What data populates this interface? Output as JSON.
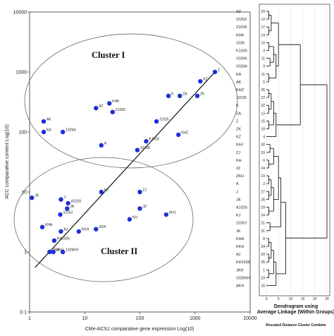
{
  "chart_data": [
    {
      "type": "scatter",
      "xlabel": "CMe-ACS1 comparative gene expression Log(10)",
      "ylabel": "ACC comparative content Log(10)",
      "xscale": "log",
      "yscale": "log",
      "xlim": [
        1,
        10000
      ],
      "ylim": [
        0.1,
        10000
      ],
      "x_ticks": [
        "1",
        "10",
        "100",
        "1000",
        "10000"
      ],
      "y_ticks": [
        "0.1",
        "1",
        "10",
        "100",
        "1000",
        "10000"
      ],
      "cluster_labels": [
        "Cluster I",
        "Cluster II"
      ],
      "regression_line": {
        "from": [
          1.25,
          0.55
        ],
        "to": [
          2300,
          1000
        ]
      },
      "points": [
        {
          "label": "Z",
          "x": 2300,
          "y": 1000
        },
        {
          "label": "KZ",
          "x": 1250,
          "y": 700
        },
        {
          "label": "K",
          "x": 330,
          "y": 400
        },
        {
          "label": "ZA",
          "x": 530,
          "y": 400
        },
        {
          "label": "ZK",
          "x": 1100,
          "y": 400
        },
        {
          "label": "KHK",
          "x": 28,
          "y": 300
        },
        {
          "label": "AZ",
          "x": 16,
          "y": 250
        },
        {
          "label": "Z1026",
          "x": 32,
          "y": 215
        },
        {
          "label": "AK",
          "x": 1.8,
          "y": 150
        },
        {
          "label": "J1026",
          "x": 200,
          "y": 150
        },
        {
          "label": "KA",
          "x": 1.8,
          "y": 100
        },
        {
          "label": "1026A",
          "x": 4,
          "y": 100
        },
        {
          "label": "KHZ",
          "x": 500,
          "y": 90
        },
        {
          "label": "K1026",
          "x": 130,
          "y": 70
        },
        {
          "label": "1026K",
          "x": 90,
          "y": 50
        },
        {
          "label": "A",
          "x": 20,
          "y": 60
        },
        {
          "label": "KJ",
          "x": 20,
          "y": 10
        },
        {
          "label": "ZJ",
          "x": 100,
          "y": 10
        },
        {
          "label": "JK",
          "x": 1.1,
          "y": 8
        },
        {
          "label": "J",
          "x": 3.7,
          "y": 7.5
        },
        {
          "label": "A1026",
          "x": 5,
          "y": 6.5
        },
        {
          "label": "JA",
          "x": 4.8,
          "y": 5.3
        },
        {
          "label": "JZ",
          "x": 100,
          "y": 5.3
        },
        {
          "label": "1026J",
          "x": 3.6,
          "y": 4.2
        },
        {
          "label": "KHJ",
          "x": 300,
          "y": 4.2
        },
        {
          "label": "KH",
          "x": 65,
          "y": 3.5
        },
        {
          "label": "KHA",
          "x": 1.7,
          "y": 2.6
        },
        {
          "label": "ZKH",
          "x": 16,
          "y": 2.4
        },
        {
          "label": "AJ",
          "x": 3.7,
          "y": 2.2
        },
        {
          "label": "KKH",
          "x": 7.8,
          "y": 2.2
        },
        {
          "label": "KH1026",
          "x": 2.8,
          "y": 1.55
        },
        {
          "label": "AKH",
          "x": 2.7,
          "y": 1
        },
        {
          "label": "JKH",
          "x": 2.3,
          "y": 1
        },
        {
          "label": "1026KH",
          "x": 4,
          "y": 1
        }
      ]
    },
    {
      "type": "dendrogram",
      "title": "Dendrogram using Average Linkage (Within Groups)",
      "xlabel": "Rescaled Distance Cluster Combine",
      "x_ticks": [
        "0",
        "5",
        "10",
        "15",
        "20",
        "25"
      ],
      "leaves": [
        {
          "label": "AZ",
          "num": "23"
        },
        {
          "label": "1026Z",
          "num": "12"
        },
        {
          "label": "Z1026",
          "num": "17"
        },
        {
          "label": "KHK",
          "num": "14"
        },
        {
          "label": "1026",
          "num": "10"
        },
        {
          "label": "K1026",
          "num": "3"
        },
        {
          "label": "1026K",
          "num": "11"
        },
        {
          "label": "1026A",
          "num": "9"
        },
        {
          "label": "KA",
          "num": "11"
        },
        {
          "label": "AK",
          "num": "5"
        },
        {
          "label": "KHZ",
          "num": "36"
        },
        {
          "label": "J1026",
          "num": "22"
        },
        {
          "label": "K",
          "num": "32"
        },
        {
          "label": "ZA",
          "num": "13"
        },
        {
          "label": "Z",
          "num": "15"
        },
        {
          "label": "ZK",
          "num": "18"
        },
        {
          "label": "KZ",
          "num": "4"
        },
        {
          "label": "KHJ",
          "num": "30"
        },
        {
          "label": "ZJ",
          "num": "33"
        },
        {
          "label": "KH",
          "num": "6"
        },
        {
          "label": "JZ",
          "num": "24"
        },
        {
          "label": "ZKH",
          "num": "19"
        },
        {
          "label": "A",
          "num": "2"
        },
        {
          "label": "J",
          "num": "27"
        },
        {
          "label": "JA",
          "num": "26"
        },
        {
          "label": "A1026",
          "num": "29"
        },
        {
          "label": "KJ",
          "num": "34"
        },
        {
          "label": "1026J",
          "num": "21"
        },
        {
          "label": "JK",
          "num": "31"
        },
        {
          "label": "KHA",
          "num": "8"
        },
        {
          "label": "KKH",
          "num": "34"
        },
        {
          "label": "AJ",
          "num": "20"
        },
        {
          "label": "KH1026",
          "num": "35"
        },
        {
          "label": "JKH",
          "num": "1"
        },
        {
          "label": "1026KH",
          "num": "23"
        },
        {
          "label": "AKH",
          "num": "16"
        }
      ]
    }
  ]
}
